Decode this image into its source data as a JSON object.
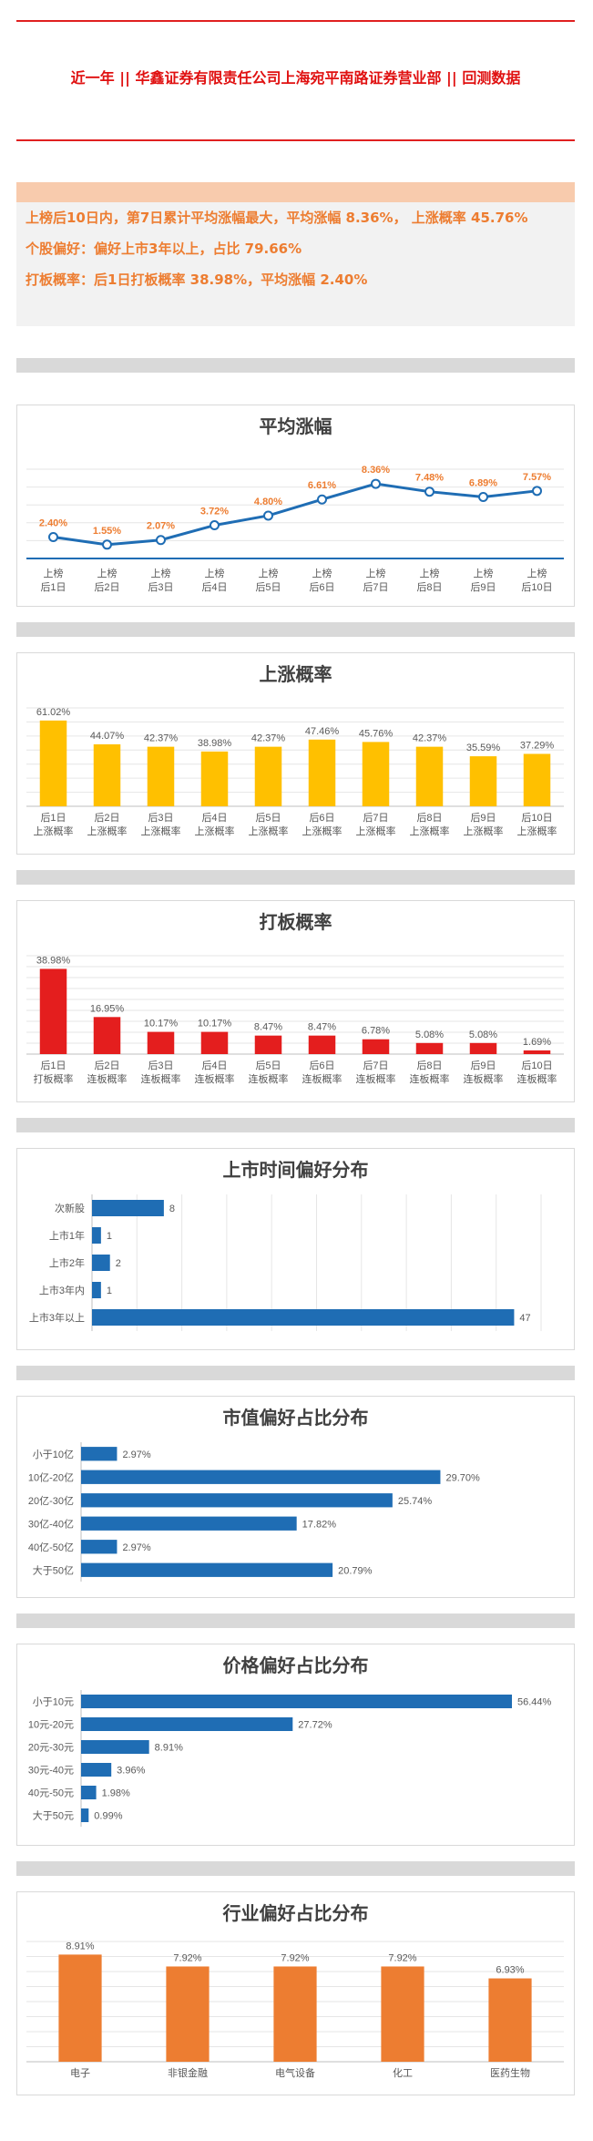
{
  "header": {
    "title": "近一年 || 华鑫证券有限责任公司上海宛平南路证券营业部 || 回测数据"
  },
  "summary": {
    "line1": "上榜后10日内，第7日累计平均涨幅最大，平均涨幅 8.36%， 上涨概率 45.76%",
    "line2": "个股偏好：偏好上市3年以上，占比 79.66%",
    "line3": "打板概率：后1日打板概率 38.98%，平均涨幅 2.40%"
  },
  "colors": {
    "accent_red": "#e02020",
    "summary_text": "#ed7d31",
    "summary_band": "#f8cbad",
    "line_blue": "#1f6db4",
    "bar_yellow": "#ffc000",
    "bar_red": "#e41e1e",
    "bar_blue": "#1f6db4",
    "bar_orange": "#ed7d31",
    "separator": "#d9d9d9"
  },
  "chart_data": [
    {
      "type": "line",
      "title": "平均涨幅",
      "categories": [
        "上榜\n后1日",
        "上榜\n后2日",
        "上榜\n后3日",
        "上榜\n后4日",
        "上榜\n后5日",
        "上榜\n后6日",
        "上榜\n后7日",
        "上榜\n后8日",
        "上榜\n后9日",
        "上榜\n后10日"
      ],
      "values": [
        2.4,
        1.55,
        2.07,
        3.72,
        4.8,
        6.61,
        8.36,
        7.48,
        6.89,
        7.57
      ],
      "data_labels": [
        "2.40%",
        "1.55%",
        "2.07%",
        "3.72%",
        "4.80%",
        "6.61%",
        "8.36%",
        "7.48%",
        "6.89%",
        "7.57%"
      ],
      "ylim": [
        0,
        10
      ],
      "grid": true
    },
    {
      "type": "bar",
      "title": "上涨概率",
      "categories": [
        "后1日\n上涨概率",
        "后2日\n上涨概率",
        "后3日\n上涨概率",
        "后4日\n上涨概率",
        "后5日\n上涨概率",
        "后6日\n上涨概率",
        "后7日\n上涨概率",
        "后8日\n上涨概率",
        "后9日\n上涨概率",
        "后10日\n上涨概率"
      ],
      "values": [
        61.02,
        44.07,
        42.37,
        38.98,
        42.37,
        47.46,
        45.76,
        42.37,
        35.59,
        37.29
      ],
      "data_labels": [
        "61.02%",
        "44.07%",
        "42.37%",
        "38.98%",
        "42.37%",
        "47.46%",
        "45.76%",
        "42.37%",
        "35.59%",
        "37.29%"
      ],
      "ylim": [
        0,
        70
      ],
      "grid": true
    },
    {
      "type": "bar",
      "title": "打板概率",
      "categories": [
        "后1日\n打板概率",
        "后2日\n连板概率",
        "后3日\n连板概率",
        "后4日\n连板概率",
        "后5日\n连板概率",
        "后6日\n连板概率",
        "后7日\n连板概率",
        "后8日\n连板概率",
        "后9日\n连板概率",
        "后10日\n连板概率"
      ],
      "values": [
        38.98,
        16.95,
        10.17,
        10.17,
        8.47,
        8.47,
        6.78,
        5.08,
        5.08,
        1.69
      ],
      "data_labels": [
        "38.98%",
        "16.95%",
        "10.17%",
        "10.17%",
        "8.47%",
        "8.47%",
        "6.78%",
        "5.08%",
        "5.08%",
        "1.69%"
      ],
      "ylim": [
        0,
        45
      ],
      "grid": true
    },
    {
      "type": "bar",
      "orientation": "horizontal",
      "title": "上市时间偏好分布",
      "categories": [
        "次新股",
        "上市1年",
        "上市2年",
        "上市3年内",
        "上市3年以上"
      ],
      "values": [
        8,
        1,
        2,
        1,
        47
      ],
      "data_labels": [
        "8",
        "1",
        "2",
        "1",
        "47"
      ],
      "xlim": [
        0,
        50
      ],
      "grid": true
    },
    {
      "type": "bar",
      "orientation": "horizontal",
      "title": "市值偏好占比分布",
      "categories": [
        "小于10亿",
        "10亿-20亿",
        "20亿-30亿",
        "30亿-40亿",
        "40亿-50亿",
        "大于50亿"
      ],
      "values": [
        2.97,
        29.7,
        25.74,
        17.82,
        2.97,
        20.79
      ],
      "data_labels": [
        "2.97%",
        "29.70%",
        "25.74%",
        "17.82%",
        "2.97%",
        "20.79%"
      ],
      "xlim": [
        0,
        32
      ],
      "grid": false
    },
    {
      "type": "bar",
      "orientation": "horizontal",
      "title": "价格偏好占比分布",
      "categories": [
        "小于10元",
        "10元-20元",
        "20元-30元",
        "30元-40元",
        "40元-50元",
        "大于50元"
      ],
      "values": [
        56.44,
        27.72,
        8.91,
        3.96,
        1.98,
        0.99
      ],
      "data_labels": [
        "56.44%",
        "27.72%",
        "8.91%",
        "3.96%",
        "1.98%",
        "0.99%"
      ],
      "xlim": [
        0,
        56.44
      ],
      "grid": false
    },
    {
      "type": "bar",
      "title": "行业偏好占比分布",
      "categories": [
        "电子",
        "非银金融",
        "电气设备",
        "化工",
        "医药生物"
      ],
      "values": [
        8.91,
        7.92,
        7.92,
        7.92,
        6.93
      ],
      "data_labels": [
        "8.91%",
        "7.92%",
        "7.92%",
        "7.92%",
        "6.93%"
      ],
      "ylim": [
        0,
        10
      ],
      "grid": true
    }
  ]
}
